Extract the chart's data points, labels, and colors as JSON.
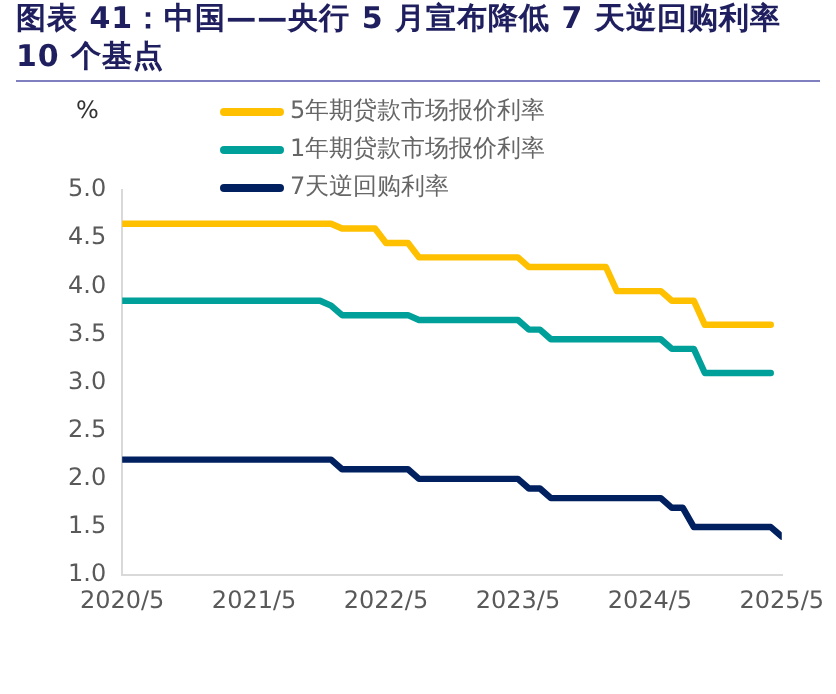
{
  "chart_data": {
    "type": "line",
    "title": "图表 41：中国——央行 5 月宣布降低 7 天逆回购利率 10 个基点",
    "ylabel": "%",
    "xlim": [
      "2020-05",
      "2025-05"
    ],
    "xticks": [
      {
        "value": "2020-05",
        "label": "2020/5"
      },
      {
        "value": "2021-05",
        "label": "2021/5"
      },
      {
        "value": "2022-05",
        "label": "2022/5"
      },
      {
        "value": "2023-05",
        "label": "2023/5"
      },
      {
        "value": "2024-05",
        "label": "2024/5"
      },
      {
        "value": "2025-05",
        "label": "2025/5"
      }
    ],
    "ylim": [
      1.0,
      5.0
    ],
    "yticks": [
      {
        "value": 1,
        "label": "1.0"
      },
      {
        "value": 1.5,
        "label": "1.5"
      },
      {
        "value": 2,
        "label": "2.0"
      },
      {
        "value": 2.5,
        "label": "2.5"
      },
      {
        "value": 3,
        "label": "3.0"
      },
      {
        "value": 3.5,
        "label": "3.5"
      },
      {
        "value": 4,
        "label": "4.0"
      },
      {
        "value": 4.5,
        "label": "4.5"
      },
      {
        "value": 5,
        "label": "5.0"
      }
    ],
    "grid": false,
    "legend": "top",
    "marker": "none",
    "line_style": "solid",
    "series": [
      {
        "name": "5年期贷款市场报价利率",
        "color": "#ffc000",
        "x": [
          "2020-05",
          "2021-12",
          "2022-01",
          "2022-04",
          "2022-05",
          "2022-07",
          "2022-08",
          "2023-05",
          "2023-06",
          "2024-01",
          "2024-02",
          "2024-06",
          "2024-07",
          "2024-09",
          "2024-10",
          "2025-04"
        ],
        "values": [
          4.65,
          4.65,
          4.6,
          4.6,
          4.45,
          4.45,
          4.3,
          4.3,
          4.2,
          4.2,
          3.95,
          3.95,
          3.85,
          3.85,
          3.6,
          3.6
        ]
      },
      {
        "name": "1年期贷款市场报价利率",
        "color": "#00a09a",
        "x": [
          "2020-05",
          "2021-11",
          "2021-12",
          "2022-01",
          "2022-07",
          "2022-08",
          "2023-05",
          "2023-06",
          "2023-07",
          "2023-08",
          "2024-06",
          "2024-07",
          "2024-09",
          "2024-10",
          "2025-04"
        ],
        "values": [
          3.85,
          3.85,
          3.8,
          3.7,
          3.7,
          3.65,
          3.65,
          3.55,
          3.55,
          3.45,
          3.45,
          3.35,
          3.35,
          3.1,
          3.1
        ]
      },
      {
        "name": "7天逆回购利率",
        "color": "#002060",
        "x": [
          "2020-05",
          "2021-12",
          "2022-01",
          "2022-07",
          "2022-08",
          "2023-05",
          "2023-06",
          "2023-07",
          "2023-08",
          "2024-06",
          "2024-07",
          "2024-08",
          "2024-09",
          "2025-04",
          "2025-05"
        ],
        "values": [
          2.2,
          2.2,
          2.1,
          2.1,
          2.0,
          2.0,
          1.9,
          1.9,
          1.8,
          1.8,
          1.7,
          1.7,
          1.5,
          1.5,
          1.4
        ]
      }
    ]
  }
}
